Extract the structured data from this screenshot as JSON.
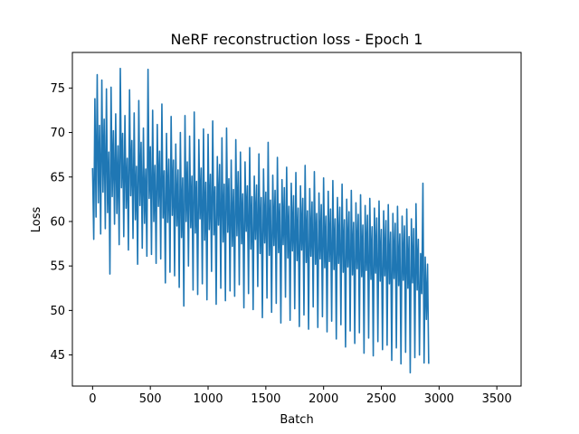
{
  "chart_data": {
    "type": "line",
    "title": "NeRF reconstruction loss - Epoch 1",
    "xlabel": "Batch",
    "ylabel": "Loss",
    "xlim": [
      -175,
      3710
    ],
    "ylim": [
      41.5,
      79.0
    ],
    "x_ticks": [
      0,
      500,
      1000,
      1500,
      2000,
      2500,
      3000,
      3500
    ],
    "y_ticks": [
      45,
      50,
      55,
      60,
      65,
      70,
      75
    ],
    "grid": false,
    "legend": "none",
    "series_color": "#1f77b4",
    "series": [
      {
        "x_start": 0,
        "x_step": 10,
        "values": [
          66.0,
          58.0,
          73.8,
          60.5,
          76.5,
          62.1,
          70.8,
          58.6,
          75.9,
          63.3,
          71.5,
          59.2,
          74.9,
          61.0,
          67.8,
          54.1,
          75.1,
          62.8,
          70.2,
          59.7,
          72.1,
          60.9,
          68.5,
          57.4,
          77.2,
          63.8,
          69.9,
          58.3,
          71.9,
          61.5,
          67.1,
          56.8,
          74.8,
          62.9,
          69.1,
          58.1,
          72.2,
          60.2,
          66.2,
          55.2,
          73.6,
          61.8,
          68.9,
          57.0,
          70.5,
          59.8,
          65.9,
          56.1,
          77.1,
          62.6,
          68.4,
          56.3,
          72.5,
          60.0,
          66.3,
          55.3,
          70.9,
          61.7,
          67.9,
          55.8,
          73.2,
          60.4,
          65.7,
          53.1,
          69.9,
          59.9,
          67.0,
          54.3,
          71.8,
          60.7,
          66.9,
          53.9,
          68.7,
          59.5,
          65.8,
          52.6,
          70.0,
          58.2,
          64.9,
          50.5,
          71.9,
          60.0,
          66.7,
          55.0,
          69.6,
          59.3,
          65.1,
          52.3,
          72.3,
          58.7,
          64.5,
          51.8,
          69.2,
          60.3,
          66.0,
          53.0,
          70.4,
          57.9,
          64.4,
          51.2,
          69.8,
          59.1,
          65.3,
          54.4,
          71.3,
          58.5,
          63.9,
          50.7,
          67.3,
          59.6,
          66.4,
          52.5,
          69.4,
          57.7,
          64.2,
          51.1,
          70.5,
          58.8,
          64.8,
          52.2,
          66.9,
          57.2,
          63.6,
          51.6,
          69.2,
          58.4,
          65.6,
          52.9,
          67.8,
          57.5,
          63.1,
          50.3,
          66.7,
          58.9,
          64.0,
          51.9,
          68.3,
          56.9,
          62.8,
          50.1,
          65.1,
          58.0,
          64.1,
          52.7,
          67.6,
          56.4,
          62.7,
          49.2,
          65.9,
          57.6,
          63.3,
          51.4,
          68.9,
          56.2,
          62.4,
          49.8,
          65.2,
          57.3,
          63.5,
          50.8,
          67.2,
          56.5,
          62.0,
          48.6,
          64.7,
          57.4,
          63.8,
          51.5,
          66.1,
          55.9,
          61.7,
          48.9,
          64.3,
          56.7,
          62.9,
          50.2,
          65.5,
          55.6,
          61.5,
          48.2,
          64.0,
          56.8,
          62.6,
          49.5,
          66.3,
          55.4,
          61.2,
          47.9,
          63.7,
          56.1,
          62.2,
          50.4,
          65.6,
          55.2,
          60.9,
          48.1,
          63.2,
          55.8,
          61.9,
          49.3,
          64.9,
          54.8,
          60.6,
          47.6,
          63.4,
          55.5,
          61.4,
          48.8,
          64.6,
          54.6,
          60.3,
          46.8,
          62.7,
          55.3,
          61.6,
          48.4,
          64.2,
          54.3,
          60.2,
          45.9,
          62.5,
          54.9,
          61.1,
          47.7,
          63.5,
          54.0,
          59.9,
          46.3,
          62.1,
          54.7,
          60.8,
          47.5,
          63.0,
          53.8,
          59.6,
          45.2,
          61.8,
          54.5,
          60.7,
          46.9,
          62.6,
          53.5,
          59.4,
          44.9,
          61.5,
          54.2,
          60.4,
          46.5,
          62.3,
          53.3,
          59.1,
          45.6,
          61.2,
          53.9,
          60.1,
          46.1,
          61.9,
          53.0,
          58.8,
          44.4,
          60.9,
          53.6,
          59.8,
          45.8,
          61.7,
          52.8,
          58.6,
          44.0,
          60.6,
          53.4,
          59.5,
          45.3,
          61.4,
          52.5,
          58.3,
          43.0,
          60.3,
          53.1,
          59.2,
          44.7,
          62.0,
          52.3,
          58.0,
          45.0,
          56.4,
          51.9,
          64.3,
          44.1,
          56.0,
          49.0,
          55.2,
          44.0
        ]
      }
    ]
  }
}
